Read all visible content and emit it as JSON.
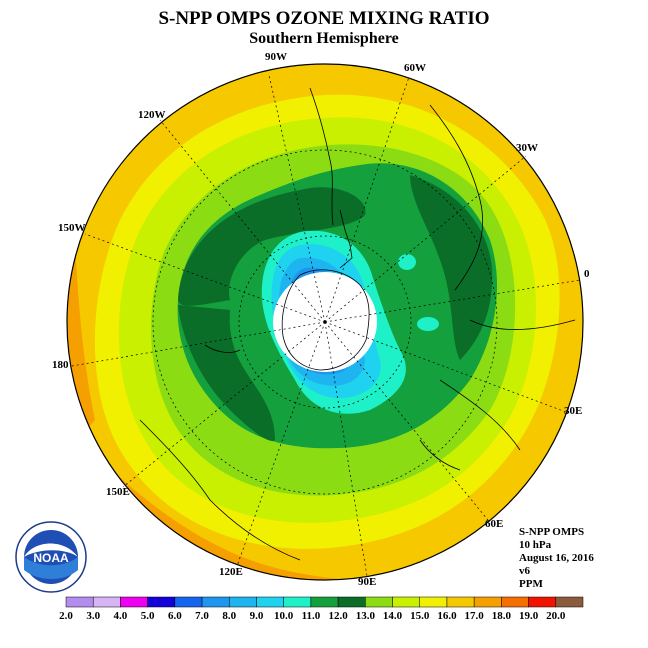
{
  "title": "S-NPP OMPS OZONE MIXING RATIO",
  "subtitle": "Southern Hemisphere",
  "lon_labels": {
    "w90": "90W",
    "w60": "60W",
    "w30": "30W",
    "e0": "0",
    "e30": "30E",
    "e60": "60E",
    "e90": "90E",
    "e120": "120E",
    "e150": "150E",
    "d180": "180",
    "w150": "150W",
    "w120": "120W"
  },
  "info": {
    "product": "S-NPP OMPS",
    "level": "10 hPa",
    "date": "August 16, 2016",
    "version": "v6",
    "units": "PPM"
  },
  "logo_text": "NOAA",
  "colorbar": {
    "ticks": [
      "2.0",
      "3.0",
      "4.0",
      "5.0",
      "6.0",
      "7.0",
      "8.0",
      "9.0",
      "10.0",
      "11.0",
      "12.0",
      "13.0",
      "14.0",
      "15.0",
      "16.0",
      "17.0",
      "18.0",
      "19.0",
      "20.0"
    ],
    "colors": [
      "#b48cf0",
      "#d6b4f5",
      "#f000f0",
      "#1400d8",
      "#1464f0",
      "#1e96f0",
      "#1eb4f0",
      "#1ed2f0",
      "#1ef0c8",
      "#14a03c",
      "#0a6e28",
      "#8cdc14",
      "#c8f000",
      "#f0f000",
      "#f5c800",
      "#f5a000",
      "#f56e00",
      "#f01400",
      "#8c5a3c"
    ]
  },
  "map_colors": {
    "ring_17_18": "#f5a000",
    "ring_16_17": "#f5c800",
    "ring_15_16": "#f0f000",
    "ring_14_15": "#c8f000",
    "ring_13_14": "#8cdc14",
    "ring_11_13": "#14a03c",
    "ring_12": "#0a6e28",
    "ring_10_11": "#1ef0c8",
    "ring_9_10": "#1ed2f0",
    "ring_8_9": "#1eb4f0",
    "ring_7_8": "#1e96f0"
  }
}
